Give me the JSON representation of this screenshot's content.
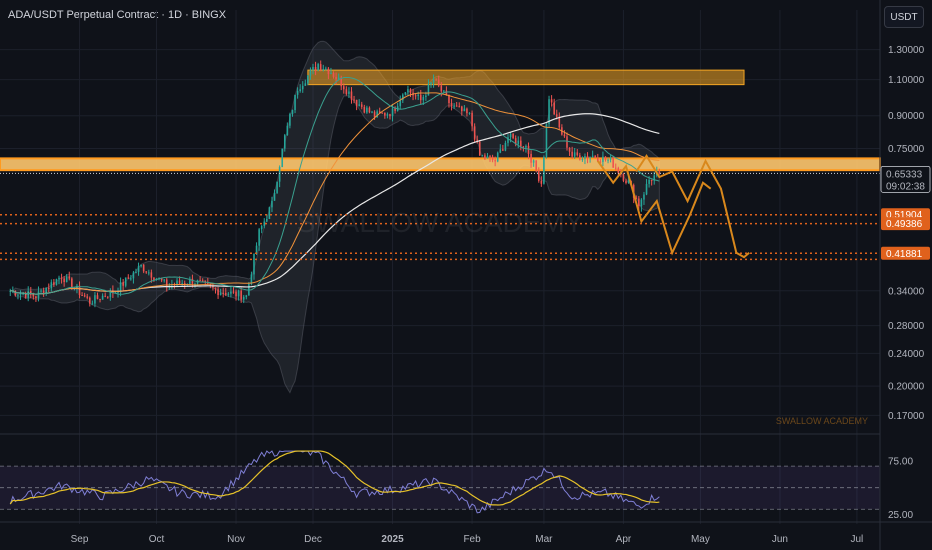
{
  "header": {
    "title": "ADA/USDT Perpetual Contract · 1D · BINGX",
    "unit_button": "USDT"
  },
  "watermark": {
    "center": "SWALLOW ACADEMY",
    "corner": "SWALLOW ACADEMY"
  },
  "colors": {
    "up": "#26a69a",
    "down": "#ef5350",
    "zone": "#f5a623",
    "projection": "#d9881c",
    "ma_slow": "#e8e8e8",
    "ma_fast": "#f0923a",
    "bb_mid": "#3aa08f",
    "rsi": "#7f7fd5",
    "rsi_ma": "#e6c229",
    "tag": "#e0611c"
  },
  "price_tags": {
    "current": "0.65333",
    "countdown": "09:02:38",
    "lvl1": "0.51904",
    "lvl2": "0.49386",
    "lvl3": "0.41881"
  },
  "chart_data": {
    "type": "candlestick",
    "y_scale": "log",
    "ylim": [
      0.155,
      1.45
    ],
    "y_ticks": [
      "1.30000",
      "1.10000",
      "0.90000",
      "0.75000",
      "0.65333",
      "0.51904",
      "0.49386",
      "0.41881",
      "0.34000",
      "0.28000",
      "0.24000",
      "0.20000",
      "0.17000"
    ],
    "y_tick_values": [
      1.3,
      1.1,
      0.9,
      0.75,
      0.65333,
      0.51904,
      0.49386,
      0.41881,
      0.34,
      0.28,
      0.24,
      0.2,
      0.17
    ],
    "x_ticks": [
      "Sep",
      "Oct",
      "Nov",
      "Dec",
      "2025",
      "Feb",
      "Mar",
      "Apr",
      "May",
      "Jun",
      "Jul"
    ],
    "x_tick_dates": [
      "2024-09-01",
      "2024-10-01",
      "2024-11-01",
      "2024-12-01",
      "2025-01-01",
      "2025-02-01",
      "2025-03-01",
      "2025-04-01",
      "2025-05-01",
      "2025-06-01",
      "2025-07-01"
    ],
    "resistance_zone": {
      "from_date": "2024-11-29",
      "to_date": "2025-05-18",
      "low": 1.07,
      "high": 1.16
    },
    "support_zone": {
      "low": 0.665,
      "high": 0.71
    },
    "current_price": 0.65333,
    "levels": [
      0.51904,
      0.49386,
      0.41881
    ],
    "key_points": [
      {
        "date": "2024-08-05",
        "close": 0.34
      },
      {
        "date": "2024-08-15",
        "close": 0.33
      },
      {
        "date": "2024-08-25",
        "close": 0.37
      },
      {
        "date": "2024-09-05",
        "close": 0.32
      },
      {
        "date": "2024-09-15",
        "close": 0.34
      },
      {
        "date": "2024-09-25",
        "close": 0.39
      },
      {
        "date": "2024-10-05",
        "close": 0.35
      },
      {
        "date": "2024-10-15",
        "close": 0.36
      },
      {
        "date": "2024-10-25",
        "close": 0.34
      },
      {
        "date": "2024-11-05",
        "close": 0.33
      },
      {
        "date": "2024-11-10",
        "close": 0.47
      },
      {
        "date": "2024-11-15",
        "close": 0.55
      },
      {
        "date": "2024-11-20",
        "close": 0.8
      },
      {
        "date": "2024-11-25",
        "close": 1.05
      },
      {
        "date": "2024-12-03",
        "close": 1.2
      },
      {
        "date": "2024-12-08",
        "close": 1.15
      },
      {
        "date": "2024-12-12",
        "close": 1.08
      },
      {
        "date": "2024-12-18",
        "close": 0.97
      },
      {
        "date": "2024-12-25",
        "close": 0.9
      },
      {
        "date": "2025-01-01",
        "close": 0.92
      },
      {
        "date": "2025-01-06",
        "close": 1.05
      },
      {
        "date": "2025-01-12",
        "close": 0.98
      },
      {
        "date": "2025-01-17",
        "close": 1.1
      },
      {
        "date": "2025-01-24",
        "close": 0.95
      },
      {
        "date": "2025-01-31",
        "close": 0.9
      },
      {
        "date": "2025-02-04",
        "close": 0.72
      },
      {
        "date": "2025-02-10",
        "close": 0.7
      },
      {
        "date": "2025-02-15",
        "close": 0.8
      },
      {
        "date": "2025-02-22",
        "close": 0.76
      },
      {
        "date": "2025-02-28",
        "close": 0.62
      },
      {
        "date": "2025-03-03",
        "close": 1.0
      },
      {
        "date": "2025-03-07",
        "close": 0.84
      },
      {
        "date": "2025-03-12",
        "close": 0.72
      },
      {
        "date": "2025-03-20",
        "close": 0.72
      },
      {
        "date": "2025-03-27",
        "close": 0.7
      },
      {
        "date": "2025-04-03",
        "close": 0.62
      },
      {
        "date": "2025-04-07",
        "close": 0.55
      },
      {
        "date": "2025-04-11",
        "close": 0.63
      },
      {
        "date": "2025-04-15",
        "close": 0.65333
      }
    ],
    "projection_paths": [
      {
        "points": [
          {
            "date": "2025-03-22",
            "price": 0.7
          },
          {
            "date": "2025-03-28",
            "price": 0.62
          },
          {
            "date": "2025-04-02",
            "price": 0.68
          },
          {
            "date": "2025-04-08",
            "price": 0.5
          },
          {
            "date": "2025-04-14",
            "price": 0.56
          },
          {
            "date": "2025-04-20",
            "price": 0.42
          },
          {
            "date": "2025-04-27",
            "price": 0.52
          },
          {
            "date": "2025-05-02",
            "price": 0.62
          },
          {
            "date": "2025-05-05",
            "price": 0.6
          }
        ]
      },
      {
        "points": [
          {
            "date": "2025-04-06",
            "price": 0.66
          },
          {
            "date": "2025-04-10",
            "price": 0.72
          },
          {
            "date": "2025-04-15",
            "price": 0.64
          },
          {
            "date": "2025-04-20",
            "price": 0.66
          },
          {
            "date": "2025-04-26",
            "price": 0.56
          },
          {
            "date": "2025-05-03",
            "price": 0.7
          },
          {
            "date": "2025-05-09",
            "price": 0.6
          },
          {
            "date": "2025-05-15",
            "price": 0.42
          },
          {
            "date": "2025-05-18",
            "price": 0.41
          },
          {
            "date": "2025-05-20",
            "price": 0.42
          }
        ]
      }
    ],
    "rsi": {
      "ylim": [
        20,
        85
      ],
      "y_ticks": [
        "75.00",
        "25.00"
      ],
      "y_tick_values": [
        75,
        25
      ],
      "band": [
        30,
        70
      ],
      "key_points": [
        {
          "date": "2024-08-05",
          "value": 38
        },
        {
          "date": "2024-08-25",
          "value": 52
        },
        {
          "date": "2024-09-10",
          "value": 42
        },
        {
          "date": "2024-09-28",
          "value": 58
        },
        {
          "date": "2024-10-10",
          "value": 45
        },
        {
          "date": "2024-10-25",
          "value": 42
        },
        {
          "date": "2024-11-10",
          "value": 78
        },
        {
          "date": "2024-11-22",
          "value": 88
        },
        {
          "date": "2024-12-03",
          "value": 80
        },
        {
          "date": "2024-12-18",
          "value": 45
        },
        {
          "date": "2025-01-01",
          "value": 48
        },
        {
          "date": "2025-01-17",
          "value": 56
        },
        {
          "date": "2025-02-04",
          "value": 28
        },
        {
          "date": "2025-02-15",
          "value": 45
        },
        {
          "date": "2025-03-03",
          "value": 68
        },
        {
          "date": "2025-03-12",
          "value": 42
        },
        {
          "date": "2025-03-25",
          "value": 45
        },
        {
          "date": "2025-04-07",
          "value": 33
        },
        {
          "date": "2025-04-15",
          "value": 44
        }
      ]
    }
  }
}
